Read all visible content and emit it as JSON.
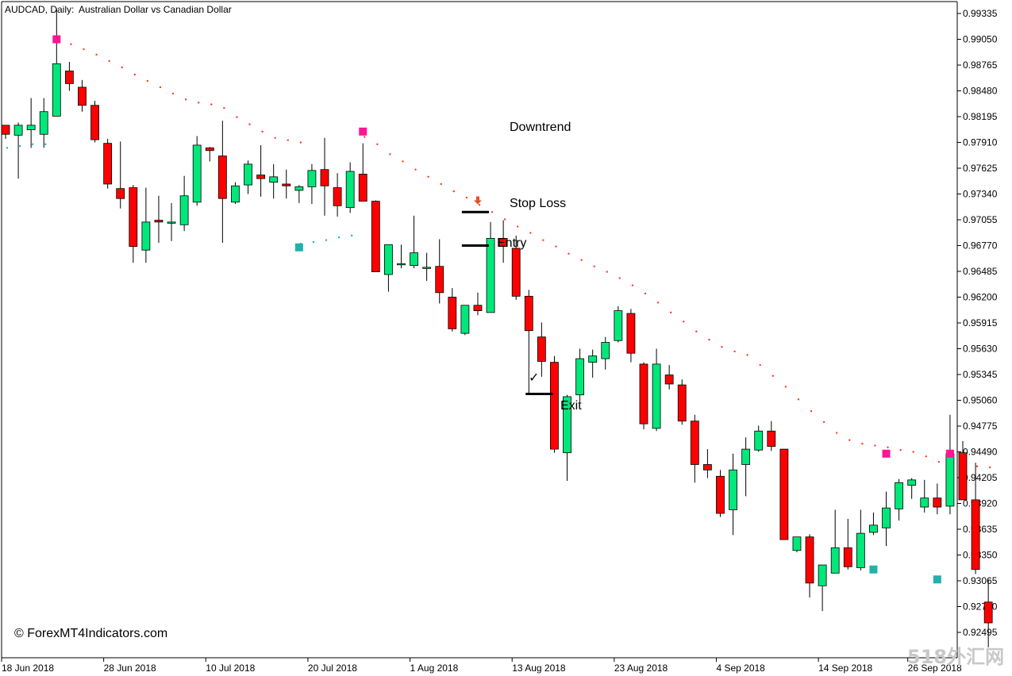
{
  "header": {
    "symbol_tf": "AUDCAD, Daily:",
    "description": "Australian Dollar vs Canadian Dollar"
  },
  "watermark": {
    "copyright": "© ForexMT4Indicators.com",
    "corner": "518外汇网"
  },
  "annotations": {
    "downtrend": "Downtrend",
    "stop_loss": "Stop Loss",
    "entry": "Entry",
    "exit": "Exit",
    "check": "✓"
  },
  "colors": {
    "bull": "#00e77a",
    "bear": "#ff0000",
    "dot_bear": "#ff3a1a",
    "dot_bull": "#20b2aa",
    "marker_bear": "#ff1493",
    "marker_bull": "#20b2aa",
    "arrow": "#e0502a",
    "axis": "#000000"
  },
  "chart_data": {
    "type": "candlestick",
    "y_ticks": [
      "0.99335",
      "0.99050",
      "0.98765",
      "0.98480",
      "0.98195",
      "0.97910",
      "0.97625",
      "0.97340",
      "0.97055",
      "0.96770",
      "0.96485",
      "0.96200",
      "0.95915",
      "0.95630",
      "0.95345",
      "0.95060",
      "0.94775",
      "0.94490",
      "0.94205",
      "0.93920",
      "0.93635",
      "0.93350",
      "0.93065",
      "0.92780",
      "0.92495"
    ],
    "x_ticks": [
      "18 Jun 2018",
      "28 Jun 2018",
      "10 Jul 2018",
      "20 Jul 2018",
      "1 Aug 2018",
      "13 Aug 2018",
      "23 Aug 2018",
      "4 Sep 2018",
      "14 Sep 2018",
      "26 Sep 2018"
    ],
    "ylim": [
      0.9224,
      0.9948
    ],
    "candles": [
      {
        "o": 0.981,
        "h": 0.9805,
        "l": 0.9795,
        "c": 0.98
      },
      {
        "o": 0.9799,
        "h": 0.9813,
        "l": 0.9751,
        "c": 0.981
      },
      {
        "o": 0.9805,
        "h": 0.984,
        "l": 0.9785,
        "c": 0.981
      },
      {
        "o": 0.98,
        "h": 0.984,
        "l": 0.9785,
        "c": 0.9825
      },
      {
        "o": 0.982,
        "h": 0.9939,
        "l": 0.982,
        "c": 0.9878
      },
      {
        "o": 0.987,
        "h": 0.988,
        "l": 0.9848,
        "c": 0.9856
      },
      {
        "o": 0.9852,
        "h": 0.986,
        "l": 0.9825,
        "c": 0.9832
      },
      {
        "o": 0.9832,
        "h": 0.9837,
        "l": 0.9791,
        "c": 0.9794
      },
      {
        "o": 0.979,
        "h": 0.9795,
        "l": 0.974,
        "c": 0.9745
      },
      {
        "o": 0.974,
        "h": 0.9792,
        "l": 0.9718,
        "c": 0.9729
      },
      {
        "o": 0.9741,
        "h": 0.9744,
        "l": 0.9658,
        "c": 0.9676
      },
      {
        "o": 0.9672,
        "h": 0.9741,
        "l": 0.9658,
        "c": 0.9703
      },
      {
        "o": 0.9705,
        "h": 0.9732,
        "l": 0.968,
        "c": 0.9703
      },
      {
        "o": 0.9703,
        "h": 0.9724,
        "l": 0.9682,
        "c": 0.9703
      },
      {
        "o": 0.97,
        "h": 0.9754,
        "l": 0.9693,
        "c": 0.9732
      },
      {
        "o": 0.9725,
        "h": 0.9798,
        "l": 0.9721,
        "c": 0.9788
      },
      {
        "o": 0.9785,
        "h": 0.9786,
        "l": 0.977,
        "c": 0.9782
      },
      {
        "o": 0.9776,
        "h": 0.9815,
        "l": 0.968,
        "c": 0.9729
      },
      {
        "o": 0.9725,
        "h": 0.9747,
        "l": 0.9723,
        "c": 0.9743
      },
      {
        "o": 0.9744,
        "h": 0.9771,
        "l": 0.9734,
        "c": 0.9767
      },
      {
        "o": 0.9755,
        "h": 0.9788,
        "l": 0.9731,
        "c": 0.9751
      },
      {
        "o": 0.9747,
        "h": 0.9767,
        "l": 0.9729,
        "c": 0.9753
      },
      {
        "o": 0.9745,
        "h": 0.9761,
        "l": 0.9729,
        "c": 0.9743
      },
      {
        "o": 0.9738,
        "h": 0.9744,
        "l": 0.9724,
        "c": 0.9742
      },
      {
        "o": 0.9742,
        "h": 0.9767,
        "l": 0.9723,
        "c": 0.976
      },
      {
        "o": 0.9761,
        "h": 0.9796,
        "l": 0.971,
        "c": 0.9743
      },
      {
        "o": 0.9741,
        "h": 0.9757,
        "l": 0.9709,
        "c": 0.9721
      },
      {
        "o": 0.9719,
        "h": 0.9769,
        "l": 0.9713,
        "c": 0.9759
      },
      {
        "o": 0.9756,
        "h": 0.979,
        "l": 0.9726,
        "c": 0.9726
      },
      {
        "o": 0.9726,
        "h": 0.9727,
        "l": 0.9648,
        "c": 0.9648
      },
      {
        "o": 0.9645,
        "h": 0.9678,
        "l": 0.9626,
        "c": 0.9678
      },
      {
        "o": 0.9657,
        "h": 0.9678,
        "l": 0.9652,
        "c": 0.9657
      },
      {
        "o": 0.9655,
        "h": 0.971,
        "l": 0.9652,
        "c": 0.9669
      },
      {
        "o": 0.9653,
        "h": 0.9669,
        "l": 0.9638,
        "c": 0.9653
      },
      {
        "o": 0.9654,
        "h": 0.9684,
        "l": 0.9613,
        "c": 0.9625
      },
      {
        "o": 0.962,
        "h": 0.963,
        "l": 0.9582,
        "c": 0.9585
      },
      {
        "o": 0.958,
        "h": 0.961,
        "l": 0.9578,
        "c": 0.9611
      },
      {
        "o": 0.9611,
        "h": 0.9625,
        "l": 0.96,
        "c": 0.9605
      },
      {
        "o": 0.9603,
        "h": 0.9703,
        "l": 0.9603,
        "c": 0.9685
      },
      {
        "o": 0.9685,
        "h": 0.9705,
        "l": 0.9658,
        "c": 0.9676
      },
      {
        "o": 0.9674,
        "h": 0.9688,
        "l": 0.9617,
        "c": 0.9621
      },
      {
        "o": 0.9621,
        "h": 0.9628,
        "l": 0.9513,
        "c": 0.9583
      },
      {
        "o": 0.9576,
        "h": 0.9592,
        "l": 0.9532,
        "c": 0.9549
      },
      {
        "o": 0.9548,
        "h": 0.9555,
        "l": 0.9448,
        "c": 0.9452
      },
      {
        "o": 0.9448,
        "h": 0.9512,
        "l": 0.9417,
        "c": 0.951
      },
      {
        "o": 0.9512,
        "h": 0.9563,
        "l": 0.9505,
        "c": 0.9552
      },
      {
        "o": 0.9548,
        "h": 0.9562,
        "l": 0.9531,
        "c": 0.9555
      },
      {
        "o": 0.9552,
        "h": 0.9576,
        "l": 0.954,
        "c": 0.957
      },
      {
        "o": 0.9572,
        "h": 0.961,
        "l": 0.957,
        "c": 0.9605
      },
      {
        "o": 0.9602,
        "h": 0.9607,
        "l": 0.9548,
        "c": 0.9558
      },
      {
        "o": 0.9546,
        "h": 0.9548,
        "l": 0.9474,
        "c": 0.948
      },
      {
        "o": 0.9475,
        "h": 0.9563,
        "l": 0.9472,
        "c": 0.9546
      },
      {
        "o": 0.9534,
        "h": 0.9545,
        "l": 0.9518,
        "c": 0.9524
      },
      {
        "o": 0.9523,
        "h": 0.9529,
        "l": 0.9479,
        "c": 0.9483
      },
      {
        "o": 0.9483,
        "h": 0.949,
        "l": 0.9415,
        "c": 0.9435
      },
      {
        "o": 0.9435,
        "h": 0.9452,
        "l": 0.942,
        "c": 0.9429
      },
      {
        "o": 0.9422,
        "h": 0.9429,
        "l": 0.9377,
        "c": 0.9381
      },
      {
        "o": 0.9385,
        "h": 0.9447,
        "l": 0.9357,
        "c": 0.9429
      },
      {
        "o": 0.9435,
        "h": 0.9465,
        "l": 0.94,
        "c": 0.9452
      },
      {
        "o": 0.9451,
        "h": 0.9478,
        "l": 0.9449,
        "c": 0.9472
      },
      {
        "o": 0.9472,
        "h": 0.9483,
        "l": 0.945,
        "c": 0.9455
      },
      {
        "o": 0.9452,
        "h": 0.945,
        "l": 0.9352,
        "c": 0.9352
      },
      {
        "o": 0.934,
        "h": 0.935,
        "l": 0.9338,
        "c": 0.9355
      },
      {
        "o": 0.9355,
        "h": 0.9358,
        "l": 0.9288,
        "c": 0.9304
      },
      {
        "o": 0.9301,
        "h": 0.9323,
        "l": 0.9273,
        "c": 0.9324
      },
      {
        "o": 0.9315,
        "h": 0.9385,
        "l": 0.9315,
        "c": 0.9343
      },
      {
        "o": 0.9343,
        "h": 0.9375,
        "l": 0.9319,
        "c": 0.9322
      },
      {
        "o": 0.9321,
        "h": 0.9385,
        "l": 0.9318,
        "c": 0.9359
      },
      {
        "o": 0.936,
        "h": 0.9382,
        "l": 0.9357,
        "c": 0.9368
      },
      {
        "o": 0.9365,
        "h": 0.9405,
        "l": 0.9345,
        "c": 0.9387
      },
      {
        "o": 0.9386,
        "h": 0.9419,
        "l": 0.9373,
        "c": 0.9415
      },
      {
        "o": 0.9412,
        "h": 0.942,
        "l": 0.9397,
        "c": 0.9418
      },
      {
        "o": 0.9388,
        "h": 0.9418,
        "l": 0.9382,
        "c": 0.9398
      },
      {
        "o": 0.9398,
        "h": 0.9414,
        "l": 0.938,
        "c": 0.9388
      },
      {
        "o": 0.9389,
        "h": 0.949,
        "l": 0.938,
        "c": 0.9447
      },
      {
        "o": 0.9448,
        "h": 0.9461,
        "l": 0.9396,
        "c": 0.9396
      },
      {
        "o": 0.9396,
        "h": 0.9437,
        "l": 0.9314,
        "c": 0.9319
      },
      {
        "o": 0.9283,
        "h": 0.9308,
        "l": 0.9233,
        "c": 0.926
      }
    ],
    "dots_bear": [
      [
        4,
        0.99033
      ],
      [
        5,
        0.98995
      ],
      [
        6,
        0.9894
      ],
      [
        7,
        0.9888
      ],
      [
        8,
        0.9881
      ],
      [
        9,
        0.9874
      ],
      [
        10,
        0.9866
      ],
      [
        11,
        0.9859
      ],
      [
        12,
        0.9852
      ],
      [
        13,
        0.9845
      ],
      [
        14,
        0.98385
      ],
      [
        15,
        0.9835
      ],
      [
        16,
        0.9833
      ],
      [
        17,
        0.9829
      ],
      [
        18,
        0.9819
      ],
      [
        19,
        0.9811
      ],
      [
        20,
        0.9803
      ],
      [
        21,
        0.9796
      ],
      [
        22,
        0.97935
      ],
      [
        23,
        0.9791
      ],
      [
        28,
        0.9797
      ],
      [
        29,
        0.9789
      ],
      [
        30,
        0.9778
      ],
      [
        31,
        0.977
      ],
      [
        32,
        0.9761
      ],
      [
        33,
        0.9753
      ],
      [
        34,
        0.9745
      ],
      [
        35,
        0.9737
      ],
      [
        36,
        0.973
      ],
      [
        37,
        0.9722
      ],
      [
        38,
        0.9714
      ],
      [
        39,
        0.9706
      ],
      [
        40,
        0.9698
      ],
      [
        41,
        0.9691
      ],
      [
        42,
        0.9683
      ],
      [
        43,
        0.9676
      ],
      [
        44,
        0.9668
      ],
      [
        45,
        0.9661
      ],
      [
        46,
        0.9654
      ],
      [
        47,
        0.9648
      ],
      [
        48,
        0.9641
      ],
      [
        49,
        0.9633
      ],
      [
        50,
        0.9624
      ],
      [
        51,
        0.9614
      ],
      [
        52,
        0.9603
      ],
      [
        53,
        0.9593
      ],
      [
        54,
        0.9582
      ],
      [
        55,
        0.9573
      ],
      [
        56,
        0.9565
      ],
      [
        57,
        0.956
      ],
      [
        58,
        0.9556
      ],
      [
        59,
        0.9545
      ],
      [
        60,
        0.9533
      ],
      [
        61,
        0.9521
      ],
      [
        62,
        0.9507
      ],
      [
        63,
        0.9494
      ],
      [
        64,
        0.9482
      ],
      [
        65,
        0.947
      ],
      [
        66,
        0.9462
      ],
      [
        67,
        0.9458
      ],
      [
        68,
        0.9456
      ],
      [
        69,
        0.9454
      ],
      [
        70,
        0.9451
      ],
      [
        71,
        0.9449
      ],
      [
        72,
        0.9444
      ],
      [
        73,
        0.9438
      ],
      [
        74,
        0.9436
      ],
      [
        75,
        0.9434
      ],
      [
        76,
        0.9433
      ],
      [
        77,
        0.9432
      ]
    ],
    "dots_bull": [
      [
        0,
        0.9785
      ],
      [
        1,
        0.9787
      ],
      [
        2,
        0.9789
      ],
      [
        3,
        0.9789
      ],
      [
        23,
        0.9679
      ],
      [
        24,
        0.9681
      ],
      [
        25,
        0.9683
      ],
      [
        26,
        0.9686
      ],
      [
        27,
        0.9688
      ]
    ],
    "markers_bear": [
      [
        4,
        0.9905
      ],
      [
        28,
        0.9803
      ],
      [
        69,
        0.9447
      ],
      [
        74,
        0.9447
      ]
    ],
    "markers_bull": [
      [
        23,
        0.9675
      ],
      [
        68,
        0.9319
      ],
      [
        73,
        0.9308
      ]
    ],
    "lines": {
      "stop_loss": 0.9714,
      "entry": 0.9677,
      "exit": 0.9513
    },
    "stop_arrow": 0.9727
  }
}
